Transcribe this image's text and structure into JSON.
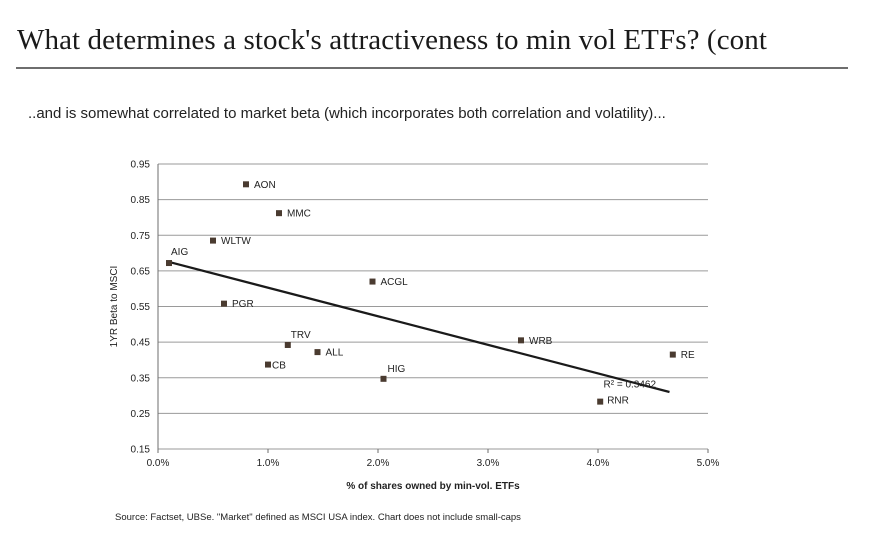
{
  "slide": {
    "title": "What determines a stock's attractiveness to min vol ETFs? (cont",
    "subtitle": "..and is somewhat correlated to market beta (which incorporates both correlation and volatility)...",
    "source": "Source: Factset, UBSe. \"Market\" defined as MSCI USA index. Chart does not include small-caps"
  },
  "chart_data": {
    "type": "scatter",
    "title": "",
    "xlabel": "% of shares owned by min-vol. ETFs",
    "ylabel": "1YR Beta to MSCI",
    "xlim": [
      0.0,
      5.0
    ],
    "ylim": [
      0.15,
      0.95
    ],
    "xticks": [
      0,
      1,
      2,
      3,
      4,
      5
    ],
    "xtick_labels": [
      "0.0%",
      "1.0%",
      "2.0%",
      "3.0%",
      "4.0%",
      "5.0%"
    ],
    "yticks": [
      0.15,
      0.25,
      0.35,
      0.45,
      0.55,
      0.65,
      0.75,
      0.85,
      0.95
    ],
    "ytick_labels": [
      "0.15",
      "0.25",
      "0.35",
      "0.45",
      "0.55",
      "0.65",
      "0.75",
      "0.85",
      "0.95"
    ],
    "grid": "horizontal",
    "marker_color": "#4a3b30",
    "points": [
      {
        "label": "AON",
        "x": 0.8,
        "y": 0.893
      },
      {
        "label": "MMC",
        "x": 1.1,
        "y": 0.812
      },
      {
        "label": "WLTW",
        "x": 0.5,
        "y": 0.735
      },
      {
        "label": "AIG",
        "x": 0.1,
        "y": 0.672
      },
      {
        "label": "ACGL",
        "x": 1.95,
        "y": 0.62
      },
      {
        "label": "PGR",
        "x": 0.6,
        "y": 0.558
      },
      {
        "label": "TRV",
        "x": 1.18,
        "y": 0.442
      },
      {
        "label": "ALL",
        "x": 1.45,
        "y": 0.422
      },
      {
        "label": "CB",
        "x": 1.0,
        "y": 0.387
      },
      {
        "label": "HIG",
        "x": 2.05,
        "y": 0.347
      },
      {
        "label": "WRB",
        "x": 3.3,
        "y": 0.455
      },
      {
        "label": "RE",
        "x": 4.68,
        "y": 0.415
      },
      {
        "label": "RNR",
        "x": 4.02,
        "y": 0.283
      }
    ],
    "trendline": {
      "x": [
        0.1,
        4.65
      ],
      "y": [
        0.675,
        0.31
      ],
      "color": "#1a1a1a"
    },
    "annotations": [
      {
        "text": "R² = 0.3462",
        "x": 4.05,
        "y": 0.32
      }
    ]
  }
}
